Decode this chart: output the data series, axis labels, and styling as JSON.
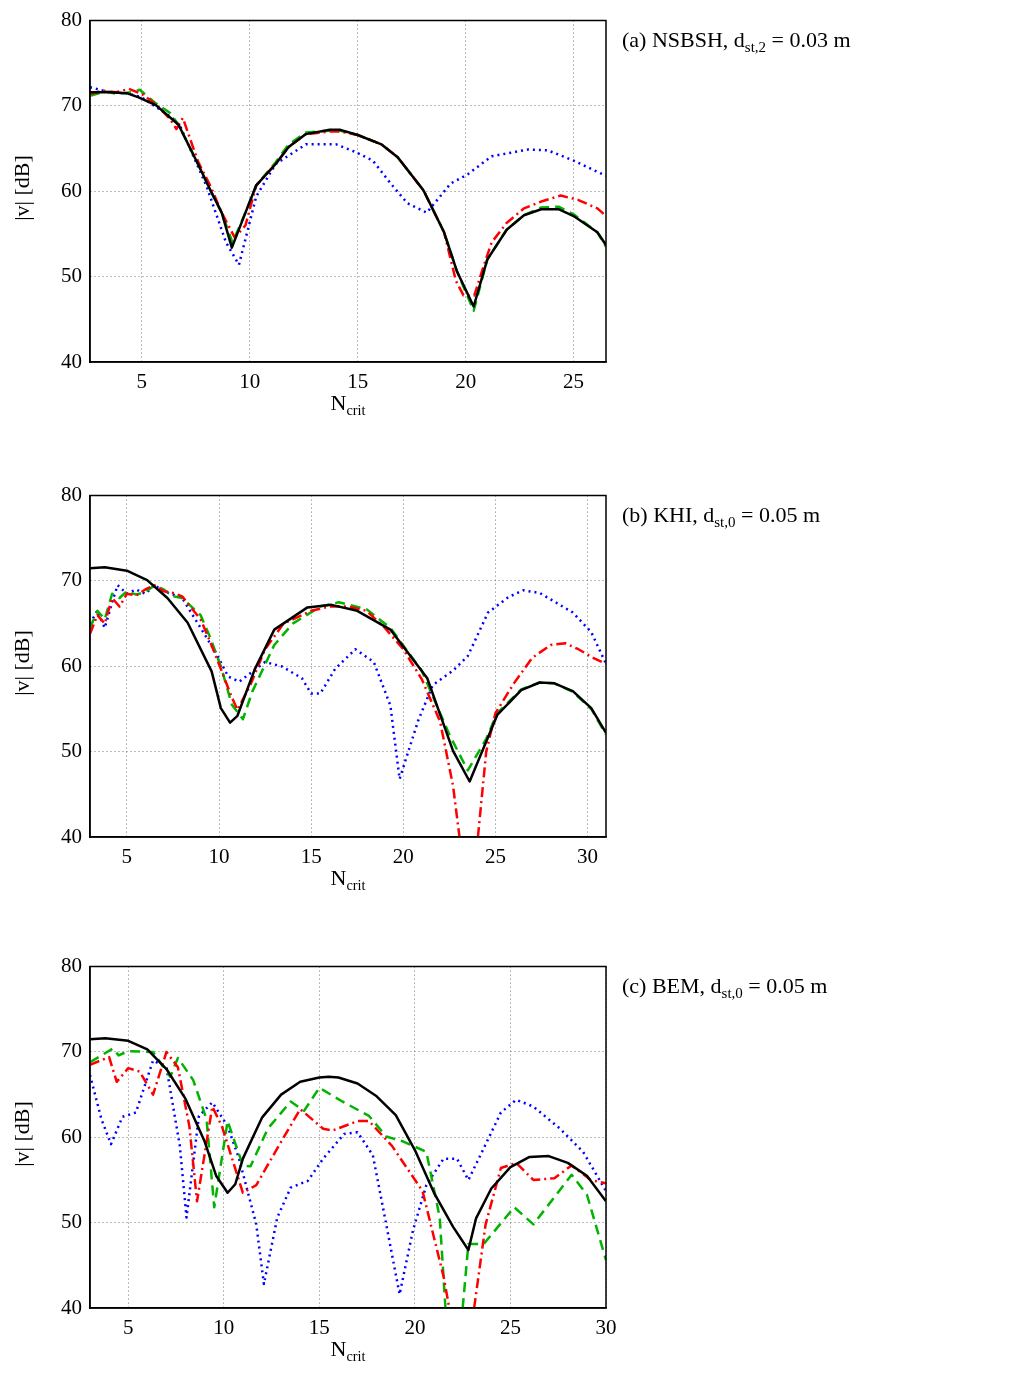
{
  "chart_data": [
    {
      "type": "line",
      "annotations": [
        "(a) NSBSH, d$_{st,2}$ = 0.03 m"
      ],
      "xlabel": "N$_{crit}$",
      "ylabel": "|v| [dB]",
      "xlim": [
        2.6,
        26.5
      ],
      "ylim": [
        40,
        80
      ],
      "xticks": [
        5,
        10,
        15,
        20,
        25
      ],
      "yticks": [
        40,
        50,
        60,
        70,
        80
      ],
      "grid": true,
      "series": [
        {
          "color": "#000000",
          "line_style": "solid",
          "x": [
            2.6,
            3.5,
            4.3,
            4.85,
            5.65,
            6.7,
            7.6,
            8.2,
            8.7,
            9.17,
            9.8,
            10.3,
            11.2,
            11.8,
            12.6,
            13.7,
            14.2,
            15,
            16.1,
            16.85,
            18.05,
            19,
            19.6,
            20.37,
            21,
            21.9,
            22.7,
            23.5,
            24.3,
            25,
            26.1,
            26.5
          ],
          "values": [
            71.6,
            71.6,
            71.5,
            71,
            70.1,
            67.8,
            63.2,
            60,
            57.5,
            53.4,
            57.5,
            60.7,
            63.2,
            65.2,
            66.7,
            67.2,
            67.2,
            66.6,
            65.5,
            64,
            60.1,
            55.2,
            50.6,
            46.5,
            52,
            55.5,
            57.2,
            57.9,
            57.9,
            57.1,
            55.2,
            53.7
          ]
        },
        {
          "color": "#ff0000",
          "line_style": "dashdot",
          "x": [
            2.6,
            3.2,
            3.8,
            4.4,
            5,
            5.65,
            6.3,
            6.6,
            6.9,
            7.6,
            8.2,
            8.7,
            9.3,
            9.8,
            10.3,
            11.2,
            11.8,
            12.6,
            13.7,
            14.2,
            15,
            16.1,
            16.85,
            18.05,
            19,
            19.55,
            19.9,
            20.4,
            20.8,
            21.2,
            21.9,
            22.7,
            23.5,
            24.4,
            25.2,
            26.1,
            26.5
          ],
          "values": [
            71.4,
            71.8,
            71.6,
            72,
            71.4,
            70.2,
            68.5,
            67.3,
            68.6,
            63.5,
            60.5,
            57.5,
            54.6,
            56,
            60.7,
            63.2,
            65.2,
            66.7,
            67,
            67,
            66.6,
            65.5,
            64,
            60.1,
            55.2,
            49.5,
            47.8,
            47.8,
            51,
            54,
            56.3,
            58,
            58.8,
            59.5,
            59,
            58,
            57.1
          ]
        },
        {
          "color": "#00b400",
          "line_style": "dashed",
          "x": [
            2.6,
            3.3,
            3.9,
            4.5,
            4.9,
            5.65,
            6.3,
            6.7,
            7.6,
            8.2,
            8.7,
            9.2,
            9.8,
            10.3,
            11.2,
            11.8,
            12.6,
            13.7,
            14.2,
            15,
            16.1,
            16.85,
            18.05,
            19,
            19.6,
            20.37,
            21,
            21.9,
            22.7,
            23.5,
            24.3,
            25,
            26.1,
            26.5
          ],
          "values": [
            71.2,
            71.7,
            71.4,
            71.6,
            71.9,
            70.3,
            69.2,
            67.8,
            63.2,
            60,
            57.5,
            54,
            57.5,
            60.7,
            63.4,
            65.5,
            66.9,
            67.1,
            67.1,
            66.6,
            65.5,
            64,
            60.1,
            55.2,
            50.6,
            46,
            52,
            55.5,
            57.2,
            58.1,
            58.2,
            57.3,
            55.2,
            53.5
          ]
        },
        {
          "color": "#0000ff",
          "line_style": "dotted",
          "x": [
            2.6,
            3.5,
            4.3,
            5,
            5.65,
            6.4,
            6.8,
            7.2,
            8,
            8.9,
            9.5,
            10.3,
            11.2,
            12.6,
            14,
            14.9,
            15.7,
            16.5,
            17.3,
            18.2,
            19.3,
            20.1,
            21.2,
            22.9,
            23.8,
            25,
            26.5
          ],
          "values": [
            72.2,
            71.6,
            71.5,
            71,
            69.9,
            68.6,
            67.5,
            65.2,
            60.6,
            54,
            51.4,
            59.4,
            63.2,
            65.5,
            65.5,
            64.6,
            63.6,
            61,
            58.6,
            57.5,
            60.9,
            62,
            64.1,
            64.9,
            64.8,
            63.6,
            61.8
          ]
        }
      ]
    },
    {
      "type": "line",
      "annotations": [
        "(b) KHI, d$_{st,0}$ = 0.05 m"
      ],
      "xlabel": "N$_{crit}$",
      "ylabel": "|v| [dB]",
      "xlim": [
        3,
        31
      ],
      "ylim": [
        40,
        80
      ],
      "xticks": [
        5,
        10,
        15,
        20,
        25,
        30
      ],
      "yticks": [
        40,
        50,
        60,
        70,
        80
      ],
      "grid": true,
      "series": [
        {
          "color": "#000000",
          "line_style": "solid",
          "x": [
            3,
            3.8,
            5,
            6.1,
            7.2,
            8.3,
            9.6,
            10.1,
            10.6,
            11,
            11.95,
            13,
            14.8,
            16.1,
            17.5,
            19.3,
            21.3,
            22.7,
            23.6,
            25.1,
            26.4,
            27.4,
            28.2,
            29.2,
            30.2,
            31
          ],
          "values": [
            71.5,
            71.6,
            71.2,
            70.1,
            68,
            65.1,
            59.4,
            55.1,
            53.4,
            54.2,
            59.7,
            64.3,
            66.9,
            67.2,
            66.5,
            64.3,
            58.6,
            50.1,
            46.5,
            54.3,
            57.2,
            58.1,
            58,
            57.1,
            55.1,
            52.2
          ]
        },
        {
          "color": "#ff0000",
          "line_style": "dashdot",
          "x": [
            3,
            3.4,
            3.8,
            4.2,
            4.6,
            5,
            5.5,
            6,
            6.5,
            7,
            7.5,
            8,
            9,
            9.5,
            10.1,
            10.65,
            11,
            11.7,
            12.5,
            13.5,
            15,
            16,
            17,
            18,
            19,
            20,
            21,
            22,
            22.7,
            23.05,
            23.5,
            24.05,
            24.5,
            25,
            26,
            27,
            28,
            28.8,
            29.5,
            30.3,
            31
          ],
          "values": [
            63.8,
            66,
            65,
            68,
            67,
            68.5,
            68.3,
            69,
            69.5,
            68.8,
            68.6,
            68.2,
            65.5,
            63,
            59.7,
            56.6,
            54.9,
            57.8,
            62,
            65,
            66.5,
            67,
            67,
            66.5,
            64.5,
            62,
            58.5,
            53.5,
            46,
            40,
            null,
            40,
            50,
            54.5,
            58,
            61,
            62.5,
            62.7,
            62,
            61,
            60.3
          ]
        },
        {
          "color": "#00b400",
          "line_style": "dashed",
          "x": [
            3,
            3.4,
            3.8,
            4.2,
            4.6,
            5,
            5.5,
            6,
            6.5,
            7,
            7.5,
            8,
            9,
            9.5,
            10.1,
            10.7,
            11.3,
            11.8,
            13,
            14,
            15.5,
            16.5,
            18,
            19.3,
            21,
            22.5,
            23.5,
            24.5,
            25.1,
            26.4,
            27.4,
            28.2,
            29.2,
            30.2,
            31
          ],
          "values": [
            64.5,
            66.5,
            65.5,
            68.5,
            68,
            68.8,
            68.4,
            68.7,
            69.5,
            69,
            68.2,
            68,
            66,
            63.5,
            60,
            55.5,
            53.8,
            57,
            62.5,
            65,
            67,
            67.5,
            66.7,
            64.5,
            59.5,
            52,
            47.8,
            51.5,
            54.5,
            57.3,
            58.1,
            58,
            57,
            55,
            52
          ]
        },
        {
          "color": "#0000ff",
          "line_style": "dotted",
          "x": [
            3,
            3.4,
            3.8,
            4.2,
            4.5,
            5,
            5.5,
            6,
            6.5,
            7,
            8,
            9,
            9.8,
            10.5,
            11.1,
            12.5,
            13.4,
            14.5,
            15,
            15.5,
            16.3,
            17.4,
            18.4,
            19.3,
            19.8,
            20.8,
            21.6,
            22.7,
            23.5,
            24.6,
            25.7,
            26.5,
            27.4,
            29.2,
            30.2,
            31
          ],
          "values": [
            65,
            66.5,
            64.5,
            67.5,
            69.5,
            68.5,
            69,
            68.5,
            69.5,
            68.8,
            68,
            64.5,
            61.7,
            58.8,
            58.2,
            60.5,
            60,
            58.6,
            56.8,
            56.8,
            59.7,
            62,
            60.5,
            55.4,
            46.8,
            53.6,
            57.8,
            59.5,
            61.2,
            66.3,
            68.1,
            68.9,
            68.6,
            66.3,
            64,
            60.3
          ]
        }
      ]
    },
    {
      "type": "line",
      "annotations": [
        "(c) BEM, d$_{st,0}$ = 0.05 m"
      ],
      "xlabel": "N$_{crit}$",
      "ylabel": "|v| [dB]",
      "xlim": [
        3,
        30
      ],
      "ylim": [
        40,
        80
      ],
      "xticks": [
        5,
        10,
        15,
        20,
        25,
        30
      ],
      "yticks": [
        40,
        50,
        60,
        70,
        80
      ],
      "grid": true,
      "series": [
        {
          "color": "#000000",
          "line_style": "solid",
          "x": [
            3,
            3.8,
            5,
            6,
            7,
            8,
            9,
            9.6,
            10.2,
            10.6,
            11,
            12,
            13,
            14,
            15,
            15.5,
            16,
            17,
            18,
            19,
            20,
            21,
            22,
            22.8,
            23.2,
            24,
            25,
            26,
            27,
            28,
            29,
            30
          ],
          "values": [
            71.5,
            71.6,
            71.3,
            70.3,
            68,
            64.5,
            59.5,
            55.5,
            53.5,
            54.5,
            57.5,
            62.3,
            65,
            66.5,
            67,
            67.1,
            67,
            66.3,
            64.8,
            62.6,
            58.5,
            53.5,
            49.5,
            46.8,
            50.5,
            54,
            56.5,
            57.7,
            57.8,
            57,
            55.5,
            52.5
          ]
        },
        {
          "color": "#ff0000",
          "line_style": "dashdot",
          "x": [
            3,
            4,
            4.4,
            5,
            5.6,
            6.3,
            7,
            7.6,
            8.2,
            8.6,
            9.4,
            9.9,
            11,
            11.7,
            12.8,
            14,
            15.2,
            15.7,
            17,
            17.6,
            18.8,
            20.4,
            21.5,
            21.8,
            22.4,
            23.1,
            23.7,
            24.5,
            25.3,
            26.2,
            27.3,
            28.2,
            29.2,
            30
          ],
          "values": [
            68.5,
            69.4,
            66.5,
            68.1,
            67.7,
            65,
            70,
            68.2,
            61.3,
            52.5,
            63.6,
            61.3,
            53.5,
            54.4,
            58.7,
            63.3,
            61,
            60.8,
            61.9,
            61.9,
            59,
            53.7,
            43.7,
            40,
            null,
            40,
            49.8,
            56.4,
            57,
            55,
            55.2,
            56.7,
            55,
            54.6
          ]
        },
        {
          "color": "#00b400",
          "line_style": "dashed",
          "x": [
            3,
            4.2,
            4.5,
            5,
            6.3,
            7.2,
            7.6,
            8.4,
            9.1,
            9.5,
            10.2,
            11,
            11.4,
            12.3,
            13.5,
            14.2,
            15,
            16.2,
            17.6,
            18.5,
            19.4,
            20.6,
            21.3,
            21.6,
            22,
            22.5,
            22.8,
            23.6,
            25.2,
            26.2,
            28.2,
            29,
            30
          ],
          "values": [
            68.8,
            70.4,
            69.6,
            70.1,
            70,
            67.1,
            69.3,
            66.7,
            62.1,
            51.8,
            61.9,
            56.7,
            56.6,
            61,
            64.2,
            63.1,
            65.8,
            64.2,
            62.5,
            60.1,
            59.5,
            58.3,
            50.6,
            40,
            null,
            40,
            47.5,
            47.5,
            51.8,
            49.8,
            55.6,
            53.3,
            45.6
          ]
        },
        {
          "color": "#0000ff",
          "line_style": "dotted",
          "x": [
            3,
            3.6,
            4.1,
            4.7,
            5.4,
            6.3,
            7,
            7.7,
            8.05,
            8.7,
            9.4,
            10.2,
            10.8,
            11.7,
            12.1,
            12.8,
            13.5,
            14.4,
            15.2,
            16.3,
            17,
            17.8,
            18.5,
            19.2,
            19.9,
            20.6,
            21.5,
            22.2,
            22.8,
            23.6,
            24.5,
            25.3,
            26.2,
            27.6,
            28.8,
            30
          ],
          "values": [
            67.3,
            62.1,
            59.2,
            62.4,
            62.9,
            69,
            68.2,
            59,
            50.6,
            62.5,
            64.1,
            61.3,
            57.5,
            49.8,
            42.8,
            50.6,
            54.1,
            54.9,
            57.5,
            60.4,
            60.6,
            57.9,
            49.8,
            41.6,
            49.1,
            54.4,
            57.5,
            57.5,
            55,
            58.7,
            62.9,
            64.4,
            63.6,
            61,
            58.3,
            53.7
          ]
        }
      ]
    }
  ]
}
